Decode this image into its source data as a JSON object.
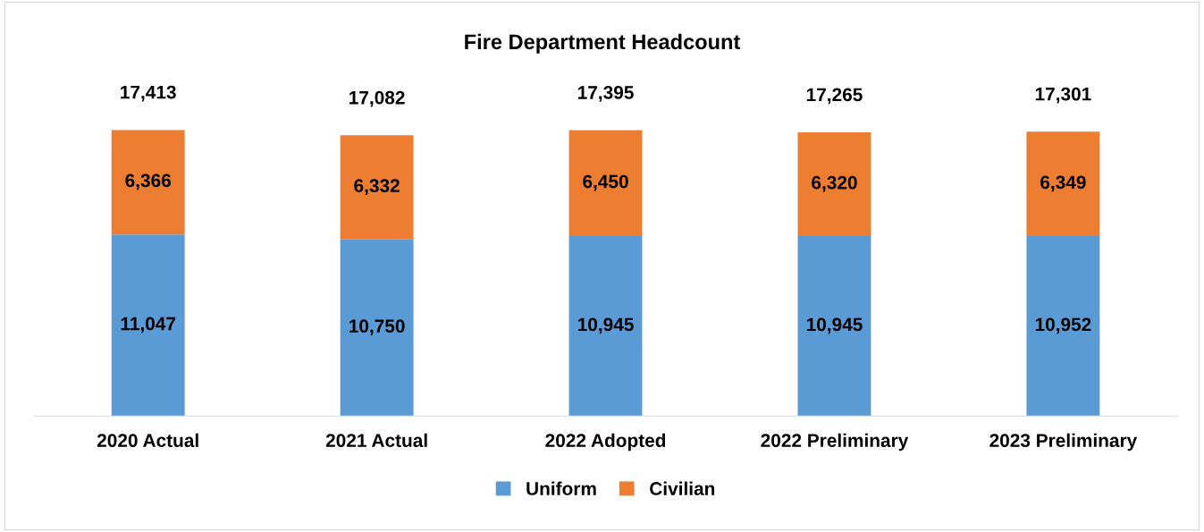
{
  "chart_data": {
    "type": "bar",
    "title": "Fire Department Headcount",
    "stacked": true,
    "legend": "bottom",
    "grid": false,
    "categories": [
      "2020 Actual",
      "2021 Actual",
      "2022 Adopted",
      "2022 Preliminary",
      "2023 Preliminary"
    ],
    "series": [
      {
        "name": "Uniform",
        "color": "#5b9bd5",
        "values": [
          11047,
          10750,
          10945,
          10945,
          10952
        ],
        "value_labels": [
          "11,047",
          "10,750",
          "10,945",
          "10,945",
          "10,952"
        ]
      },
      {
        "name": "Civilian",
        "color": "#ed7d31",
        "values": [
          6366,
          6332,
          6450,
          6320,
          6349
        ],
        "value_labels": [
          "6,366",
          "6,332",
          "6,450",
          "6,320",
          "6,349"
        ]
      }
    ],
    "totals": [
      "17,413",
      "17,082",
      "17,395",
      "17,265",
      "17,301"
    ]
  }
}
